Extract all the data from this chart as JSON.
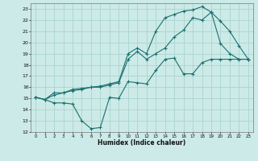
{
  "xlabel": "Humidex (Indice chaleur)",
  "bg_color": "#cceae7",
  "grid_color": "#aad4d0",
  "line_color": "#1a7070",
  "xlim": [
    -0.5,
    23.5
  ],
  "ylim": [
    12,
    23.5
  ],
  "xticks": [
    0,
    1,
    2,
    3,
    4,
    5,
    6,
    7,
    8,
    9,
    10,
    11,
    12,
    13,
    14,
    15,
    16,
    17,
    18,
    19,
    20,
    21,
    22,
    23
  ],
  "yticks": [
    12,
    13,
    14,
    15,
    16,
    17,
    18,
    19,
    20,
    21,
    22,
    23
  ],
  "line1_x": [
    0,
    1,
    2,
    3,
    4,
    5,
    6,
    7,
    8,
    9,
    10,
    11,
    12,
    13,
    14,
    15,
    16,
    17,
    18,
    19,
    20,
    21,
    22,
    23
  ],
  "line1_y": [
    15.1,
    14.9,
    14.6,
    14.6,
    14.5,
    13.0,
    12.3,
    12.4,
    15.1,
    15.0,
    16.5,
    16.4,
    16.3,
    17.5,
    18.5,
    18.6,
    17.2,
    17.2,
    18.2,
    18.5,
    18.5,
    18.5,
    18.5,
    18.5
  ],
  "line2_x": [
    0,
    1,
    2,
    3,
    4,
    5,
    6,
    7,
    8,
    9,
    10,
    11,
    12,
    13,
    14,
    15,
    16,
    17,
    18,
    19,
    20,
    21,
    22,
    23
  ],
  "line2_y": [
    15.1,
    14.9,
    15.5,
    15.5,
    15.7,
    15.8,
    16.0,
    16.0,
    16.2,
    16.4,
    18.5,
    19.2,
    18.5,
    19.0,
    19.5,
    20.5,
    21.1,
    22.2,
    22.0,
    22.7,
    21.9,
    21.0,
    19.7,
    18.5
  ],
  "line3_x": [
    0,
    1,
    2,
    3,
    4,
    5,
    6,
    7,
    8,
    9,
    10,
    11,
    12,
    13,
    14,
    15,
    16,
    17,
    18,
    19,
    20,
    21,
    22,
    23
  ],
  "line3_y": [
    15.1,
    14.9,
    15.3,
    15.5,
    15.8,
    15.9,
    16.0,
    16.1,
    16.3,
    16.5,
    19.0,
    19.5,
    19.0,
    21.0,
    22.2,
    22.5,
    22.8,
    22.9,
    23.2,
    22.7,
    19.9,
    19.0,
    18.5,
    18.5
  ]
}
